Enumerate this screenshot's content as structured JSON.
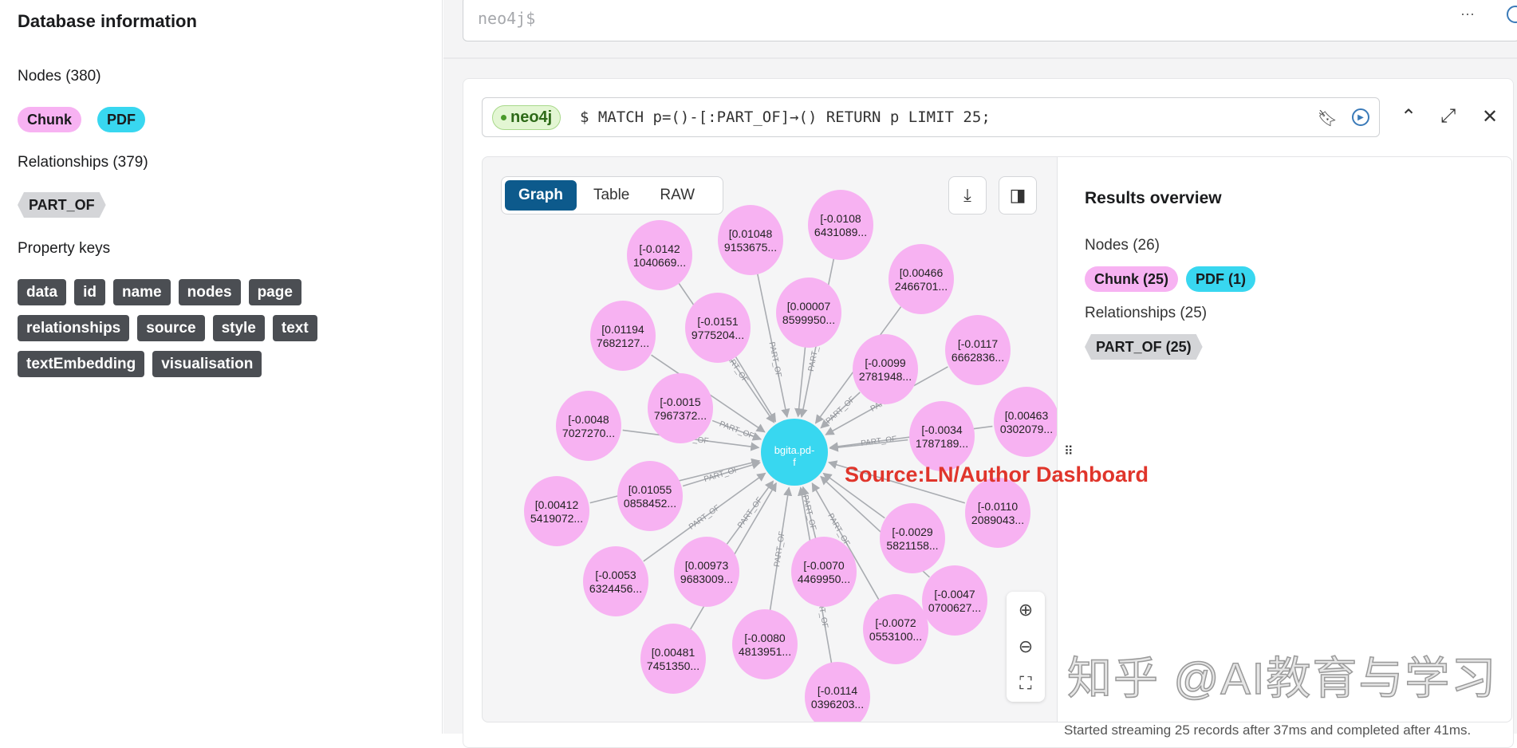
{
  "sidebar": {
    "title": "Database information",
    "nodes_heading": "Nodes (380)",
    "node_labels": [
      "Chunk",
      "PDF"
    ],
    "relationships_heading": "Relationships (379)",
    "relationship_types": [
      "PART_OF"
    ],
    "property_keys_heading": "Property keys",
    "property_keys": [
      "data",
      "id",
      "name",
      "nodes",
      "page",
      "relationships",
      "source",
      "style",
      "text",
      "textEmbedding",
      "visualisation"
    ]
  },
  "editor": {
    "placeholder": "neo4j$",
    "more_icon": "ellipsis-icon",
    "run_icon": "play-circle-icon"
  },
  "query": {
    "db_badge": "neo4j",
    "text": "$ MATCH p=()-[:PART_OF]→() RETURN p LIMIT 25;",
    "icons": [
      "bookmark-icon",
      "play-circle-icon",
      "chevron-up-icon",
      "expand-icon",
      "close-icon"
    ]
  },
  "view_tabs": [
    "Graph",
    "Table",
    "RAW"
  ],
  "active_tab": "Graph",
  "graph": {
    "center_node": "bgita.pd-\nf",
    "relationship_label": "PART_OF",
    "chunk_nodes": [
      "[-0.0142\n1040669...",
      "[0.01048\n9153675...",
      "[-0.0108\n6431089...",
      "[0.00466\n2466701...",
      "[0.00007\n8599950...",
      "[-0.0151\n9775204...",
      "[0.01194\n7682127...",
      "[-0.0099\n2781948...",
      "[-0.0117\n6662836...",
      "[-0.0015\n7967372...",
      "[-0.0048\n7027270...",
      "[0.00463\n0302079...",
      "[-0.0034\n1787189...",
      "[0.01055\n0858452...",
      "[0.00412\n5419072...",
      "[-0.0110\n2089043...",
      "[-0.0029\n5821158...",
      "[-0.0053\n6324456...",
      "[0.00973\n9683009...",
      "[-0.0070\n4469950...",
      "[-0.0047\n0700627...",
      "[-0.0072\n0553100...",
      "[0.00481\n7451350...",
      "[-0.0080\n4813951...",
      "[-0.0114\n0396203..."
    ],
    "colors": {
      "chunk": "#f7b2f2",
      "pdf": "#38d7f0",
      "edge": "#a9acb1"
    }
  },
  "overlay_text": "Source:LN/Author Dashboard",
  "results_overview": {
    "title": "Results overview",
    "nodes_heading": "Nodes (26)",
    "node_chips": [
      "Chunk (25)",
      "PDF (1)"
    ],
    "relationships_heading": "Relationships (25)",
    "relationship_chips": [
      "PART_OF (25)"
    ]
  },
  "watermark": "知乎 @AI教育与学习",
  "status": "Started streaming 25 records after 37ms and completed after 41ms."
}
